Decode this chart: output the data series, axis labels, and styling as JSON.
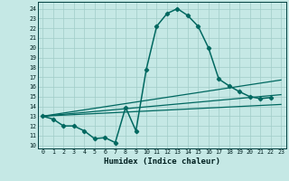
{
  "xlabel": "Humidex (Indice chaleur)",
  "xlim": [
    -0.5,
    23.5
  ],
  "ylim": [
    9.7,
    24.7
  ],
  "yticks": [
    10,
    11,
    12,
    13,
    14,
    15,
    16,
    17,
    18,
    19,
    20,
    21,
    22,
    23,
    24
  ],
  "xticks": [
    0,
    1,
    2,
    3,
    4,
    5,
    6,
    7,
    8,
    9,
    10,
    11,
    12,
    13,
    14,
    15,
    16,
    17,
    18,
    19,
    20,
    21,
    22,
    23
  ],
  "bg_color": "#c5e8e5",
  "grid_color": "#a0ccc8",
  "line_color": "#006860",
  "curve1_x": [
    0,
    1,
    2,
    3,
    4,
    5,
    6,
    7,
    8,
    9,
    10,
    11,
    12,
    13,
    14,
    15,
    16,
    17,
    18,
    19,
    20,
    21,
    22,
    23
  ],
  "curve1_y": [
    13.0,
    12.7,
    12.0,
    12.0,
    11.5,
    10.7,
    10.8,
    10.3,
    13.9,
    11.5,
    17.8,
    22.2,
    23.5,
    24.0,
    23.3,
    22.2,
    20.0,
    16.8,
    16.1,
    15.5,
    15.0,
    14.8,
    14.9,
    null
  ],
  "line_straight": [
    [
      0,
      23,
      13.0,
      16.7
    ],
    [
      0,
      23,
      13.0,
      15.2
    ],
    [
      0,
      23,
      13.0,
      14.2
    ]
  ]
}
